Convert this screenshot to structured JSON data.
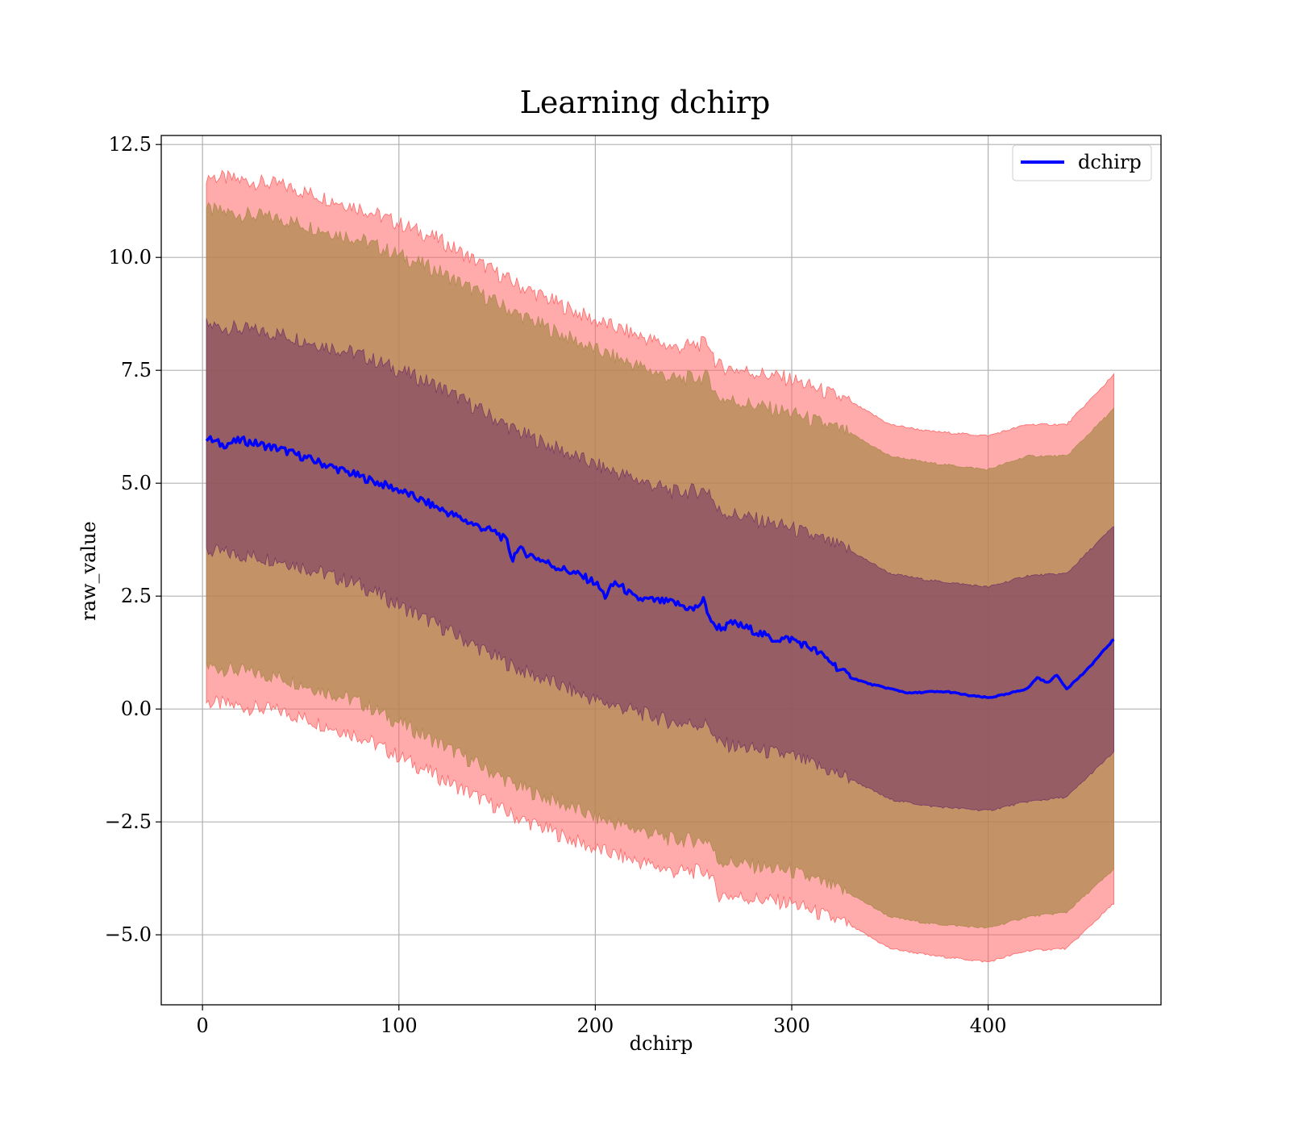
{
  "chart_data": {
    "type": "line",
    "title": "Learning dchirp",
    "xlabel": "dchirp",
    "ylabel": "raw_value",
    "xlim": [
      -21,
      488
    ],
    "ylim": [
      -6.55,
      12.7
    ],
    "xticks": [
      0,
      100,
      200,
      300,
      400
    ],
    "xtick_labels": [
      "0",
      "100",
      "200",
      "300",
      "400"
    ],
    "yticks": [
      -5.0,
      -2.5,
      0.0,
      2.5,
      5.0,
      7.5,
      10.0,
      12.5
    ],
    "ytick_labels": [
      "−5.0",
      "−2.5",
      "0.0",
      "2.5",
      "5.0",
      "7.5",
      "10.0",
      "12.5"
    ],
    "grid": true,
    "legend": {
      "position": "top-right",
      "entries": [
        "dchirp"
      ]
    },
    "colors": {
      "line": "#0000ff",
      "band_outer": "#ff6666",
      "band_middle": "#b08a50",
      "band_inner": "#7a3a63"
    },
    "series": [
      {
        "name": "dchirp",
        "x": [
          2,
          10,
          20,
          30,
          40,
          50,
          60,
          70,
          80,
          90,
          100,
          110,
          120,
          130,
          140,
          150,
          155,
          158,
          160,
          170,
          180,
          190,
          200,
          205,
          210,
          215,
          220,
          230,
          240,
          250,
          255,
          260,
          265,
          270,
          280,
          290,
          300,
          310,
          320,
          325,
          330,
          340,
          350,
          360,
          370,
          380,
          390,
          400,
          410,
          415,
          420,
          425,
          430,
          435,
          440,
          450,
          464
        ],
        "y": [
          6.0,
          5.85,
          5.95,
          5.85,
          5.75,
          5.6,
          5.45,
          5.3,
          5.15,
          5.0,
          4.85,
          4.65,
          4.45,
          4.25,
          4.05,
          3.9,
          3.7,
          3.3,
          3.55,
          3.35,
          3.15,
          3.0,
          2.8,
          2.5,
          2.8,
          2.65,
          2.45,
          2.4,
          2.35,
          2.2,
          2.4,
          1.85,
          1.8,
          1.9,
          1.75,
          1.55,
          1.55,
          1.35,
          1.05,
          0.85,
          0.7,
          0.55,
          0.45,
          0.35,
          0.38,
          0.38,
          0.3,
          0.25,
          0.33,
          0.4,
          0.45,
          0.7,
          0.58,
          0.75,
          0.45,
          0.85,
          1.55
        ]
      }
    ],
    "bands": [
      {
        "x": [
          2,
          40,
          80,
          120,
          160,
          200,
          240,
          258,
          262,
          300,
          330,
          350,
          370,
          400,
          420,
          440,
          464
        ],
        "upper": [
          11.8,
          11.6,
          11.1,
          10.4,
          9.4,
          8.6,
          8.0,
          8.1,
          7.6,
          7.3,
          6.8,
          6.3,
          6.15,
          6.05,
          6.3,
          6.3,
          7.4
        ],
        "lower": [
          0.15,
          -0.05,
          -0.6,
          -1.5,
          -2.4,
          -3.1,
          -3.6,
          -3.6,
          -4.1,
          -4.3,
          -4.8,
          -5.3,
          -5.45,
          -5.6,
          -5.35,
          -5.3,
          -4.3
        ]
      },
      {
        "x": [
          2,
          40,
          80,
          120,
          160,
          200,
          240,
          258,
          262,
          300,
          330,
          350,
          370,
          400,
          420,
          440,
          464
        ],
        "upper": [
          11.05,
          10.85,
          10.4,
          9.7,
          8.75,
          7.95,
          7.3,
          7.35,
          6.9,
          6.55,
          6.1,
          5.6,
          5.45,
          5.3,
          5.6,
          5.6,
          6.65
        ],
        "lower": [
          0.95,
          0.7,
          0.15,
          -0.75,
          -1.7,
          -2.4,
          -2.9,
          -2.9,
          -3.35,
          -3.6,
          -4.1,
          -4.6,
          -4.75,
          -4.85,
          -4.6,
          -4.5,
          -3.55
        ]
      },
      {
        "x": [
          2,
          40,
          80,
          120,
          160,
          200,
          240,
          258,
          262,
          300,
          330,
          350,
          370,
          400,
          420,
          440,
          464
        ],
        "upper": [
          8.5,
          8.3,
          7.85,
          7.15,
          6.15,
          5.4,
          4.8,
          4.85,
          4.4,
          4.0,
          3.5,
          3.0,
          2.85,
          2.7,
          2.95,
          3.0,
          4.05
        ],
        "lower": [
          3.5,
          3.3,
          2.75,
          1.85,
          0.9,
          0.2,
          -0.3,
          -0.35,
          -0.75,
          -1.05,
          -1.55,
          -2.0,
          -2.15,
          -2.25,
          -2.05,
          -1.95,
          -0.95
        ]
      }
    ]
  }
}
